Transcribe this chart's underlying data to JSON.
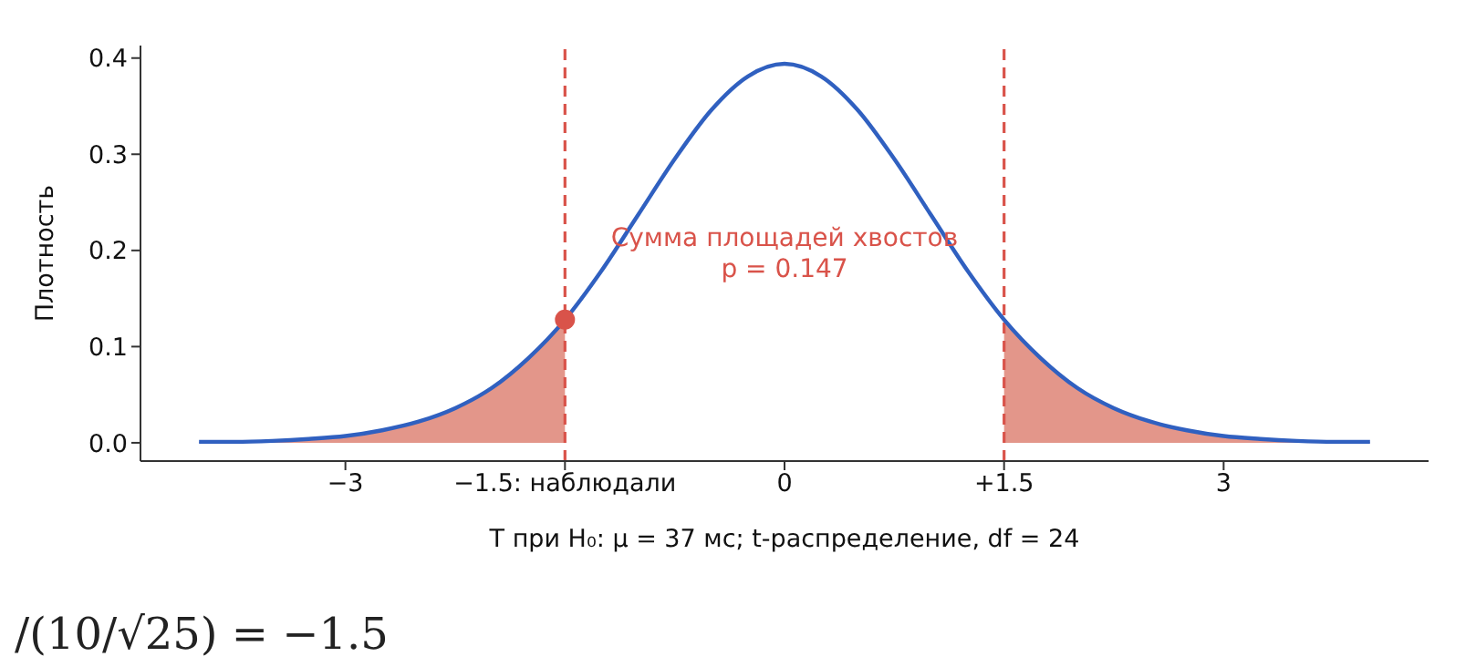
{
  "chart_data": {
    "type": "line",
    "xlabel": "T при H₀: μ = 37 мс;  t-распределение, df = 24",
    "ylabel": "Плотность",
    "xlim": [
      -4.4,
      4.4
    ],
    "ylim": [
      -0.019,
      0.413
    ],
    "xticks": [
      {
        "value": -3,
        "label": "−3"
      },
      {
        "value": -1.5,
        "label": "−1.5: наблюдали"
      },
      0,
      {
        "value": 1.5,
        "label": "+1.5"
      },
      3
    ],
    "yticks": [
      {
        "value": 0,
        "label": "0.0"
      },
      {
        "value": 0.1,
        "label": "0.1"
      },
      {
        "value": 0.2,
        "label": "0.2"
      },
      {
        "value": 0.3,
        "label": "0.3"
      },
      {
        "value": 0.4,
        "label": "0.4"
      }
    ],
    "series": [
      {
        "type": "area",
        "color": "#e3968a",
        "x": [
          -4,
          -3.75,
          -3.5,
          -3.25,
          -3,
          -2.75,
          -2.5,
          -2.25,
          -2,
          -1.75,
          -1.5
        ],
        "values": [
          0.001,
          0.001,
          0.002,
          0.004,
          0.007,
          0.013,
          0.022,
          0.036,
          0.057,
          0.088,
          0.128
        ]
      },
      {
        "type": "area",
        "color": "#e3968a",
        "x": [
          1.5,
          1.75,
          2,
          2.25,
          2.5,
          2.75,
          3,
          3.25,
          3.5,
          3.75,
          4
        ],
        "values": [
          0.128,
          0.088,
          0.057,
          0.036,
          0.022,
          0.013,
          0.007,
          0.004,
          0.002,
          0.001,
          0.001
        ]
      },
      {
        "color": "#3060c0",
        "x": [
          -4,
          -3.75,
          -3.5,
          -3.25,
          -3,
          -2.75,
          -2.5,
          -2.25,
          -2,
          -1.75,
          -1.5,
          -1.25,
          -1,
          -0.75,
          -0.5,
          -0.25,
          0,
          0.25,
          0.5,
          0.75,
          1,
          1.25,
          1.5,
          1.75,
          2,
          2.25,
          2.5,
          2.75,
          3,
          3.25,
          3.5,
          3.75,
          4
        ],
        "values": [
          0.001,
          0.001,
          0.002,
          0.004,
          0.007,
          0.013,
          0.022,
          0.036,
          0.057,
          0.088,
          0.128,
          0.179,
          0.237,
          0.295,
          0.346,
          0.381,
          0.394,
          0.381,
          0.346,
          0.295,
          0.237,
          0.179,
          0.128,
          0.088,
          0.057,
          0.036,
          0.022,
          0.013,
          0.007,
          0.004,
          0.002,
          0.001,
          0.001
        ]
      },
      {
        "type": "scatter",
        "color": "#d9534a",
        "x": [
          -1.5
        ],
        "values": [
          0.128
        ]
      }
    ],
    "ref_lines": [
      {
        "axis": "x",
        "value": -1.5,
        "color": "#d9534a",
        "line_style": "dashed"
      },
      {
        "axis": "x",
        "value": 1.5,
        "color": "#d9534a",
        "line_style": "dashed"
      }
    ],
    "annotations": [
      "Сумма площадей хвостов\np = 0.147",
      "/(10/√25) = −1.5"
    ]
  }
}
